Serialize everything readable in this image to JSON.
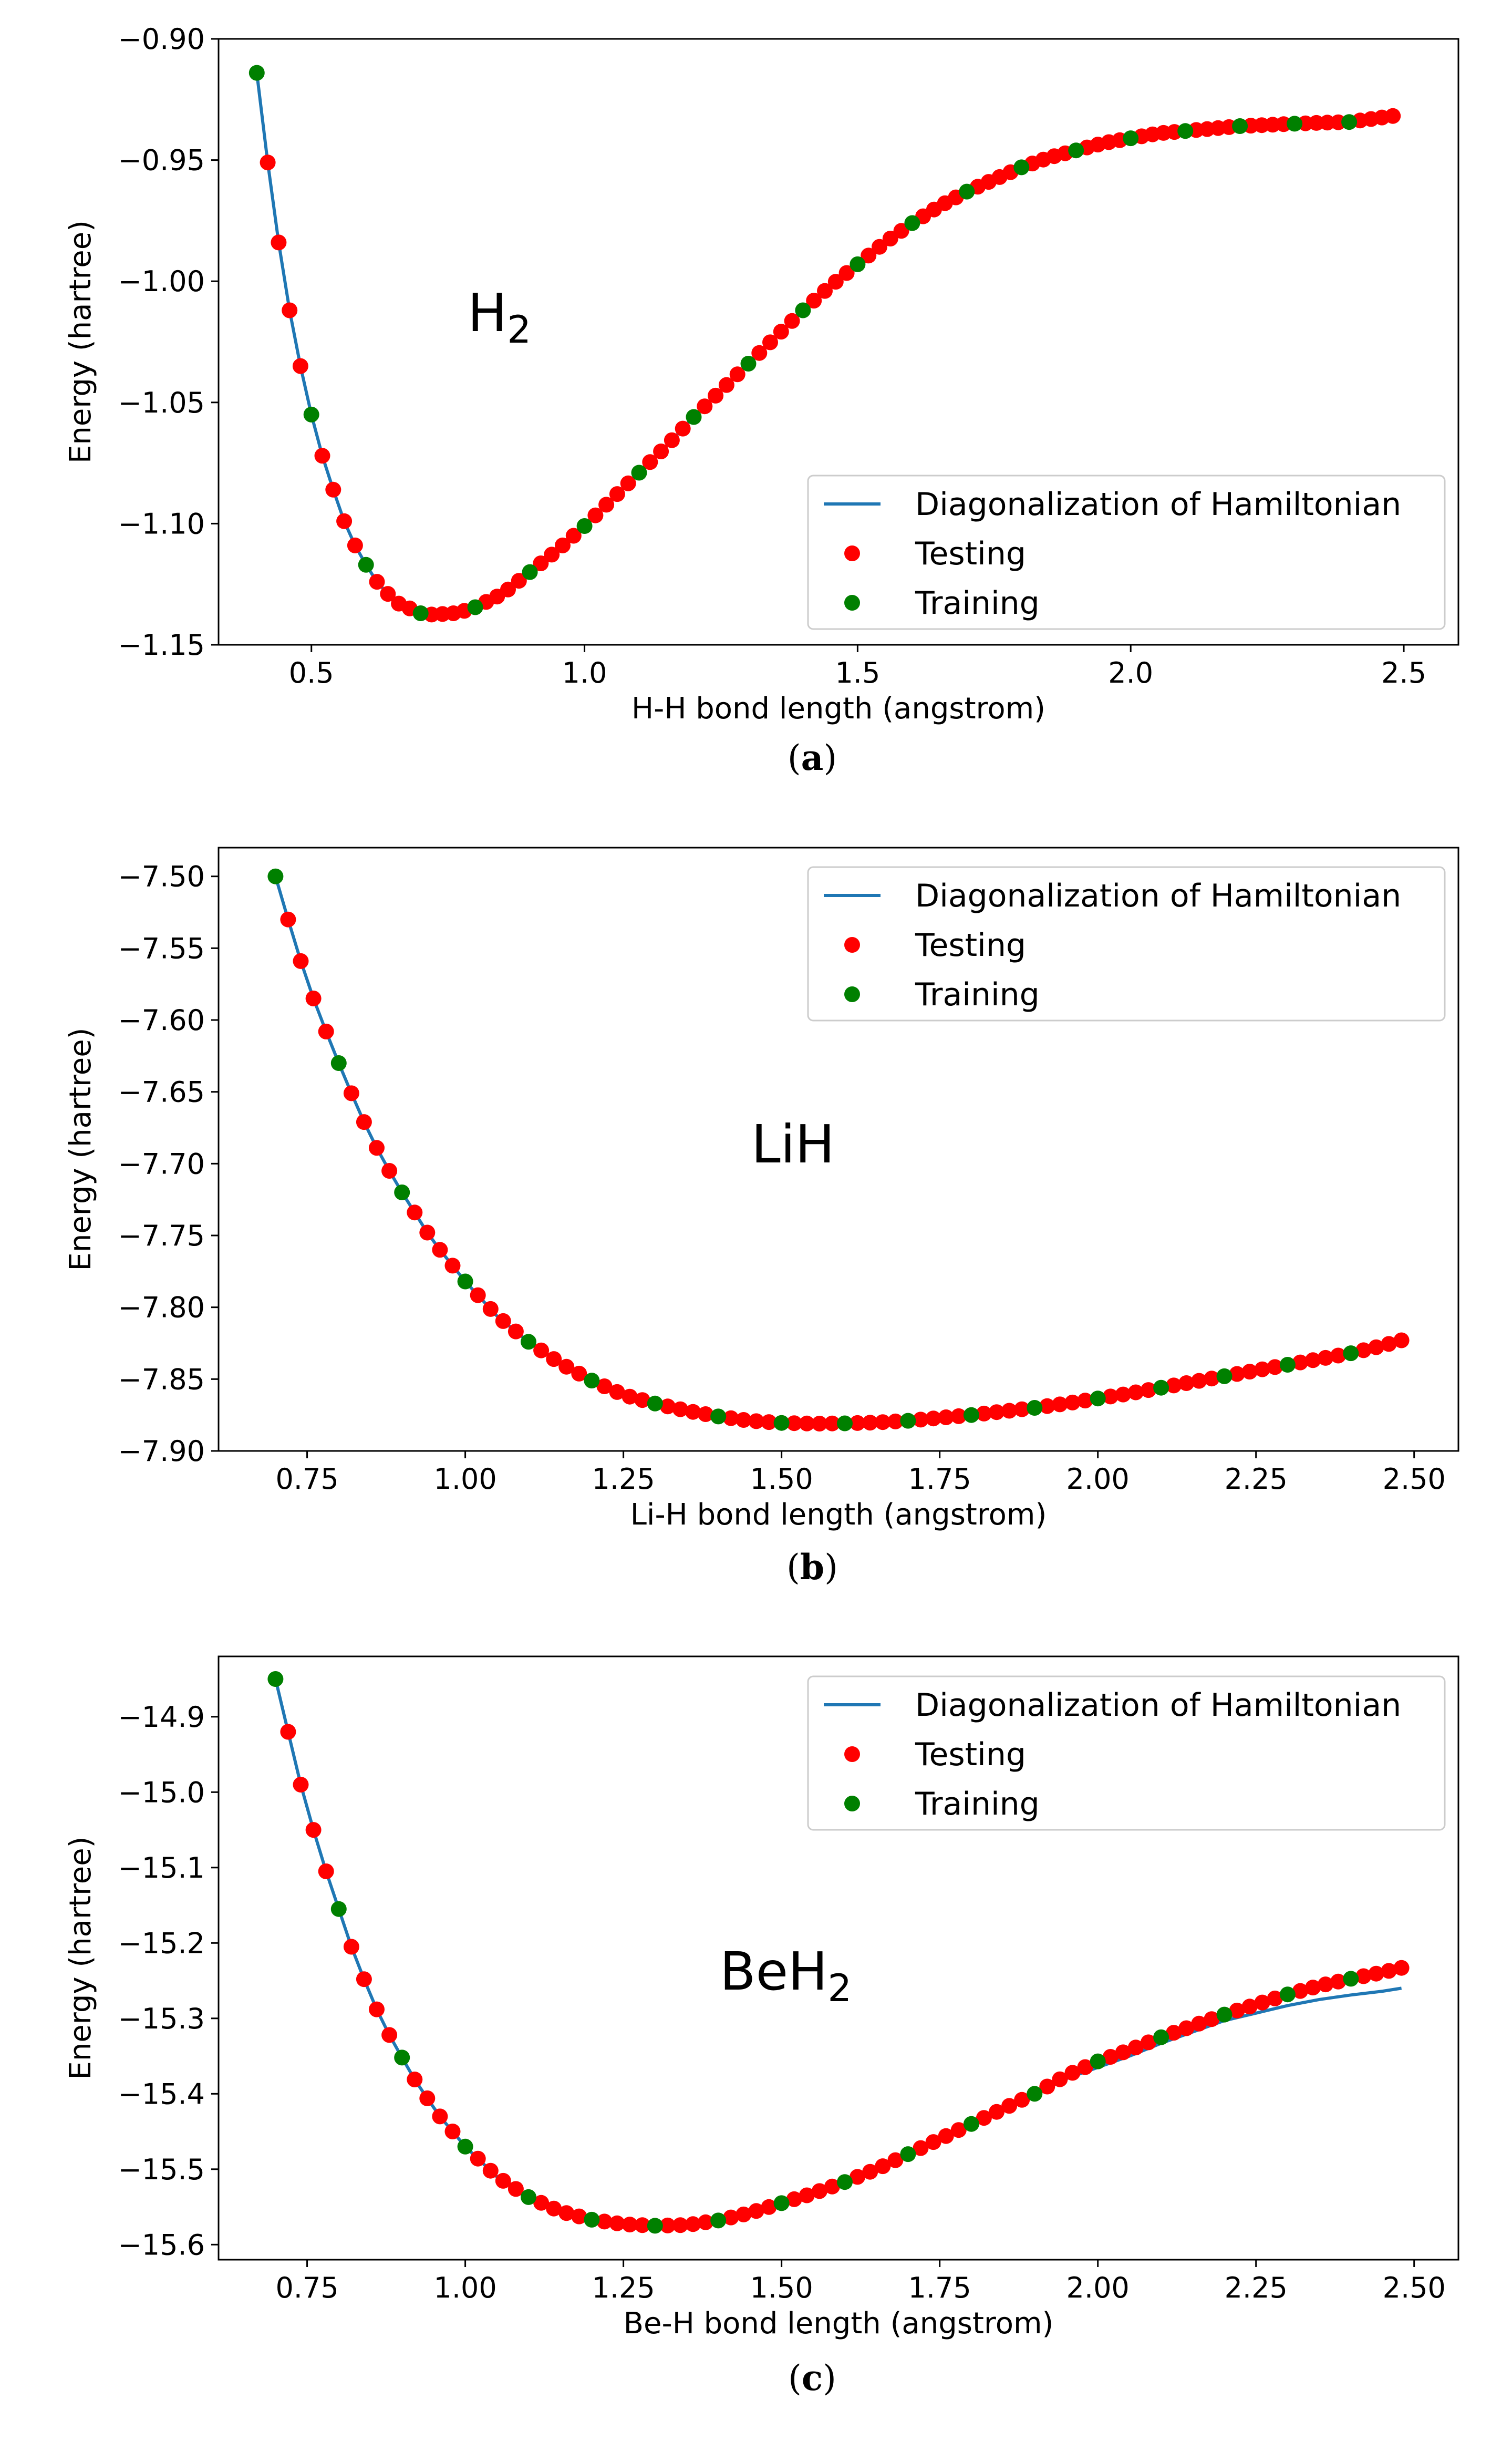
{
  "colors": {
    "line": "#1f77b4",
    "testing": "#ff0000",
    "training": "#008000",
    "frame": "#000000"
  },
  "chart_data": [
    {
      "type": "line",
      "caption_parts": [
        "(",
        "a",
        ")"
      ],
      "annotation": {
        "base": "H",
        "sub": "2"
      },
      "xlabel": "H-H bond length (angstrom)",
      "ylabel": "Energy (hartree)",
      "xlim": [
        0.33,
        2.6
      ],
      "ylim": [
        -1.15,
        -0.9
      ],
      "xticks": [
        0.5,
        1.0,
        1.5,
        2.0,
        2.5
      ],
      "xtick_labels": [
        "0.5",
        "1.0",
        "1.5",
        "2.0",
        "2.5"
      ],
      "yticks": [
        -0.9,
        -0.95,
        -1.0,
        -1.05,
        -1.1,
        -1.15
      ],
      "ytick_labels": [
        "−0.90",
        "−0.95",
        "−1.00",
        "−1.05",
        "−1.10",
        "−1.15"
      ],
      "legend": {
        "position": "lower-right",
        "entries": [
          "Diagonalization of Hamiltonian",
          "Testing",
          "Training"
        ]
      },
      "curve_points": [
        [
          0.4,
          -0.914
        ],
        [
          0.42,
          -0.951
        ],
        [
          0.44,
          -0.984
        ],
        [
          0.46,
          -1.012
        ],
        [
          0.48,
          -1.035
        ],
        [
          0.5,
          -1.055
        ],
        [
          0.52,
          -1.072
        ],
        [
          0.54,
          -1.086
        ],
        [
          0.56,
          -1.099
        ],
        [
          0.58,
          -1.109
        ],
        [
          0.6,
          -1.117
        ],
        [
          0.62,
          -1.124
        ],
        [
          0.64,
          -1.129
        ],
        [
          0.66,
          -1.133
        ],
        [
          0.68,
          -1.135
        ],
        [
          0.7,
          -1.137
        ],
        [
          0.72,
          -1.1375
        ],
        [
          0.74,
          -1.1373
        ],
        [
          0.76,
          -1.137
        ],
        [
          0.78,
          -1.136
        ],
        [
          0.8,
          -1.1345
        ],
        [
          0.85,
          -1.129
        ],
        [
          0.9,
          -1.12
        ],
        [
          0.95,
          -1.111
        ],
        [
          1.0,
          -1.101
        ],
        [
          1.05,
          -1.09
        ],
        [
          1.1,
          -1.079
        ],
        [
          1.15,
          -1.068
        ],
        [
          1.2,
          -1.056
        ],
        [
          1.25,
          -1.045
        ],
        [
          1.3,
          -1.034
        ],
        [
          1.35,
          -1.023
        ],
        [
          1.4,
          -1.012
        ],
        [
          1.45,
          -1.002
        ],
        [
          1.5,
          -0.993
        ],
        [
          1.55,
          -0.984
        ],
        [
          1.6,
          -0.976
        ],
        [
          1.65,
          -0.969
        ],
        [
          1.7,
          -0.963
        ],
        [
          1.75,
          -0.958
        ],
        [
          1.8,
          -0.953
        ],
        [
          1.85,
          -0.949
        ],
        [
          1.9,
          -0.946
        ],
        [
          1.95,
          -0.943
        ],
        [
          2.0,
          -0.941
        ],
        [
          2.05,
          -0.939
        ],
        [
          2.1,
          -0.938
        ],
        [
          2.15,
          -0.937
        ],
        [
          2.2,
          -0.936
        ],
        [
          2.25,
          -0.9355
        ],
        [
          2.3,
          -0.935
        ],
        [
          2.35,
          -0.9346
        ],
        [
          2.4,
          -0.9343
        ],
        [
          2.45,
          -0.934
        ],
        [
          2.48,
          -0.9338
        ]
      ],
      "series": [
        {
          "name": "Diagonalization of Hamiltonian",
          "kind": "line",
          "x_range": [
            0.4,
            2.48
          ]
        },
        {
          "name": "Testing",
          "kind": "scatter",
          "x_start": 0.42,
          "x_step": 0.02,
          "count": 104,
          "exclude_x": [
            0.5,
            0.6,
            0.7,
            0.8,
            0.9,
            1.0,
            1.1,
            1.2,
            1.3,
            1.4,
            1.5,
            1.6,
            1.7,
            1.8,
            1.9,
            2.0,
            2.1,
            2.2,
            2.3,
            2.4
          ],
          "y_offset": [
            [
              2.4,
              0
            ],
            [
              2.48,
              0.002
            ]
          ]
        },
        {
          "name": "Training",
          "kind": "scatter",
          "x": [
            0.4,
            0.5,
            0.6,
            0.7,
            0.8,
            0.9,
            1.0,
            1.1,
            1.2,
            1.3,
            1.4,
            1.5,
            1.6,
            1.7,
            1.8,
            1.9,
            2.0,
            2.1,
            2.2,
            2.3,
            2.4
          ]
        }
      ]
    },
    {
      "type": "line",
      "caption_parts": [
        "(",
        "b",
        ")"
      ],
      "annotation": {
        "base": "LiH",
        "sub": ""
      },
      "xlabel": "Li-H bond length (angstrom)",
      "ylabel": "Energy (hartree)",
      "xlim": [
        0.61,
        2.57
      ],
      "ylim": [
        -7.9,
        -7.48
      ],
      "xticks": [
        0.75,
        1.0,
        1.25,
        1.5,
        1.75,
        2.0,
        2.25,
        2.5
      ],
      "xtick_labels": [
        "0.75",
        "1.00",
        "1.25",
        "1.50",
        "1.75",
        "2.00",
        "2.25",
        "2.50"
      ],
      "yticks": [
        -7.5,
        -7.55,
        -7.6,
        -7.65,
        -7.7,
        -7.75,
        -7.8,
        -7.85,
        -7.9
      ],
      "ytick_labels": [
        "−7.50",
        "−7.55",
        "−7.60",
        "−7.65",
        "−7.70",
        "−7.75",
        "−7.80",
        "−7.85",
        "−7.90"
      ],
      "legend": {
        "position": "top-right",
        "entries": [
          "Diagonalization of Hamiltonian",
          "Testing",
          "Training"
        ]
      },
      "curve_points": [
        [
          0.7,
          -7.5
        ],
        [
          0.72,
          -7.53
        ],
        [
          0.74,
          -7.559
        ],
        [
          0.76,
          -7.585
        ],
        [
          0.78,
          -7.608
        ],
        [
          0.8,
          -7.63
        ],
        [
          0.82,
          -7.651
        ],
        [
          0.84,
          -7.671
        ],
        [
          0.86,
          -7.689
        ],
        [
          0.88,
          -7.705
        ],
        [
          0.9,
          -7.72
        ],
        [
          0.92,
          -7.734
        ],
        [
          0.94,
          -7.748
        ],
        [
          0.96,
          -7.76
        ],
        [
          0.98,
          -7.771
        ],
        [
          1.0,
          -7.782
        ],
        [
          1.05,
          -7.806
        ],
        [
          1.1,
          -7.824
        ],
        [
          1.15,
          -7.839
        ],
        [
          1.2,
          -7.851
        ],
        [
          1.25,
          -7.861
        ],
        [
          1.3,
          -7.867
        ],
        [
          1.35,
          -7.872
        ],
        [
          1.4,
          -7.876
        ],
        [
          1.45,
          -7.879
        ],
        [
          1.5,
          -7.8805
        ],
        [
          1.55,
          -7.881
        ],
        [
          1.6,
          -7.8808
        ],
        [
          1.65,
          -7.8802
        ],
        [
          1.7,
          -7.879
        ],
        [
          1.75,
          -7.877
        ],
        [
          1.8,
          -7.875
        ],
        [
          1.85,
          -7.8725
        ],
        [
          1.9,
          -7.87
        ],
        [
          1.95,
          -7.867
        ],
        [
          2.0,
          -7.8635
        ],
        [
          2.05,
          -7.86
        ],
        [
          2.1,
          -7.856
        ],
        [
          2.15,
          -7.852
        ],
        [
          2.2,
          -7.848
        ],
        [
          2.25,
          -7.844
        ],
        [
          2.3,
          -7.84
        ],
        [
          2.35,
          -7.836
        ],
        [
          2.4,
          -7.832
        ],
        [
          2.45,
          -7.828
        ],
        [
          2.48,
          -7.825
        ]
      ],
      "series": [
        {
          "name": "Diagonalization of Hamiltonian",
          "kind": "line",
          "x_range": [
            0.7,
            2.48
          ]
        },
        {
          "name": "Testing",
          "kind": "scatter",
          "x_start": 0.72,
          "x_step": 0.02,
          "count": 89,
          "exclude_x": [
            0.8,
            0.9,
            1.0,
            1.1,
            1.2,
            1.3,
            1.4,
            1.5,
            1.6,
            1.7,
            1.8,
            1.9,
            2.0,
            2.1,
            2.2,
            2.3,
            2.4
          ],
          "y_offset": [
            [
              2.4,
              0
            ],
            [
              2.48,
              0.002
            ]
          ]
        },
        {
          "name": "Training",
          "kind": "scatter",
          "x": [
            0.7,
            0.8,
            0.9,
            1.0,
            1.1,
            1.2,
            1.3,
            1.4,
            1.5,
            1.6,
            1.7,
            1.8,
            1.9,
            2.0,
            2.1,
            2.2,
            2.3,
            2.4
          ]
        }
      ]
    },
    {
      "type": "line",
      "caption_parts": [
        "(",
        "c",
        ")"
      ],
      "annotation": {
        "base": "BeH",
        "sub": "2"
      },
      "xlabel": "Be-H bond length (angstrom)",
      "ylabel": "Energy (hartree)",
      "xlim": [
        0.61,
        2.57
      ],
      "ylim": [
        -15.62,
        -14.82
      ],
      "xticks": [
        0.75,
        1.0,
        1.25,
        1.5,
        1.75,
        2.0,
        2.25,
        2.5
      ],
      "xtick_labels": [
        "0.75",
        "1.00",
        "1.25",
        "1.50",
        "1.75",
        "2.00",
        "2.25",
        "2.50"
      ],
      "yticks": [
        -14.9,
        -15.0,
        -15.1,
        -15.2,
        -15.3,
        -15.4,
        -15.5,
        -15.6
      ],
      "ytick_labels": [
        "−14.9",
        "−15.0",
        "−15.1",
        "−15.2",
        "−15.3",
        "−15.4",
        "−15.5",
        "−15.6"
      ],
      "legend": {
        "position": "top-right",
        "entries": [
          "Diagonalization of Hamiltonian",
          "Testing",
          "Training"
        ]
      },
      "curve_points": [
        [
          0.7,
          -14.85
        ],
        [
          0.72,
          -14.92
        ],
        [
          0.74,
          -14.99
        ],
        [
          0.76,
          -15.05
        ],
        [
          0.78,
          -15.105
        ],
        [
          0.8,
          -15.155
        ],
        [
          0.82,
          -15.205
        ],
        [
          0.84,
          -15.248
        ],
        [
          0.86,
          -15.288
        ],
        [
          0.88,
          -15.322
        ],
        [
          0.9,
          -15.352
        ],
        [
          0.92,
          -15.381
        ],
        [
          0.94,
          -15.406
        ],
        [
          0.96,
          -15.43
        ],
        [
          0.98,
          -15.45
        ],
        [
          1.0,
          -15.47
        ],
        [
          1.05,
          -15.51
        ],
        [
          1.1,
          -15.537
        ],
        [
          1.15,
          -15.556
        ],
        [
          1.2,
          -15.567
        ],
        [
          1.25,
          -15.573
        ],
        [
          1.3,
          -15.575
        ],
        [
          1.35,
          -15.574
        ],
        [
          1.4,
          -15.568
        ],
        [
          1.45,
          -15.558
        ],
        [
          1.5,
          -15.545
        ],
        [
          1.55,
          -15.532
        ],
        [
          1.6,
          -15.517
        ],
        [
          1.65,
          -15.5
        ],
        [
          1.7,
          -15.48
        ],
        [
          1.75,
          -15.46
        ],
        [
          1.8,
          -15.44
        ],
        [
          1.85,
          -15.42
        ],
        [
          1.9,
          -15.4
        ],
        [
          1.95,
          -15.38
        ],
        [
          2.0,
          -15.365
        ],
        [
          2.05,
          -15.35
        ],
        [
          2.1,
          -15.333
        ],
        [
          2.15,
          -15.318
        ],
        [
          2.2,
          -15.303
        ],
        [
          2.25,
          -15.293
        ],
        [
          2.3,
          -15.283
        ],
        [
          2.35,
          -15.275
        ],
        [
          2.4,
          -15.269
        ],
        [
          2.45,
          -15.264
        ],
        [
          2.48,
          -15.26
        ]
      ],
      "series": [
        {
          "name": "Diagonalization of Hamiltonian",
          "kind": "line",
          "x_range": [
            0.7,
            2.48
          ]
        },
        {
          "name": "Testing",
          "kind": "scatter",
          "x_start": 0.72,
          "x_step": 0.02,
          "count": 89,
          "exclude_x": [
            0.8,
            0.9,
            1.0,
            1.1,
            1.2,
            1.3,
            1.4,
            1.5,
            1.6,
            1.7,
            1.8,
            1.9,
            2.0,
            2.1,
            2.2,
            2.3,
            2.4
          ],
          "y_offset": [
            [
              1.9,
              0
            ],
            [
              2.0,
              0.008
            ],
            [
              2.2,
              0.008
            ],
            [
              2.48,
              0.027
            ]
          ]
        },
        {
          "name": "Training",
          "kind": "scatter",
          "x": [
            0.7,
            0.8,
            0.9,
            1.0,
            1.1,
            1.2,
            1.3,
            1.4,
            1.5,
            1.6,
            1.7,
            1.8,
            1.9,
            2.0,
            2.1,
            2.2,
            2.3,
            2.4
          ]
        }
      ]
    }
  ]
}
